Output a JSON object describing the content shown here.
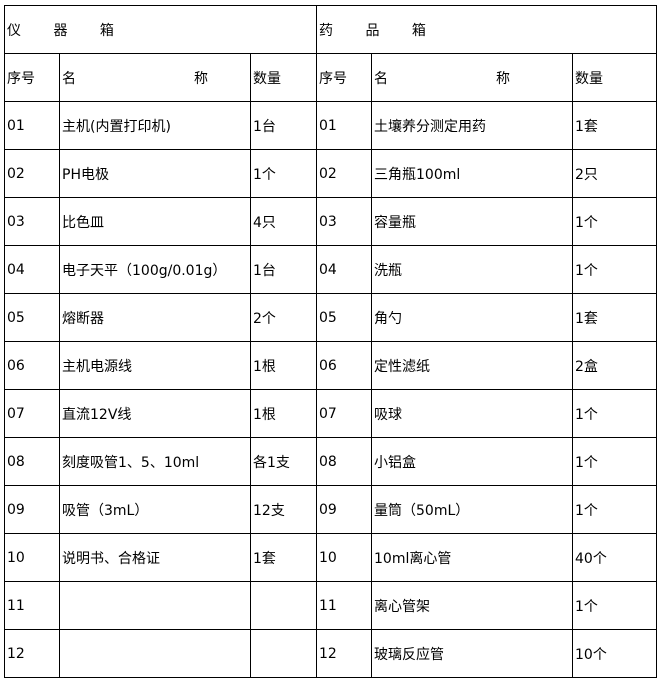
{
  "instrument_box": {
    "title": "仪 器 箱",
    "headers": {
      "no": "序号",
      "name_a": "名",
      "name_b": "称",
      "qty": "数量"
    },
    "rows": [
      {
        "no": "01",
        "name": "主机(内置打印机)",
        "qty": "1台"
      },
      {
        "no": "02",
        "name": "PH电极",
        "qty": "1个"
      },
      {
        "no": "03",
        "name": "比色皿",
        "qty": "4只"
      },
      {
        "no": "04",
        "name": "电子天平（100g/0.01g）",
        "qty": "1台"
      },
      {
        "no": "05",
        "name": "熔断器",
        "qty": "2个"
      },
      {
        "no": "06",
        "name": "主机电源线",
        "qty": "1根"
      },
      {
        "no": "07",
        "name": "直流12V线",
        "qty": "1根"
      },
      {
        "no": "08",
        "name": "刻度吸管1、5、10ml",
        "qty": "各1支"
      },
      {
        "no": "09",
        "name": "吸管（3mL）",
        "qty": "12支"
      },
      {
        "no": "10",
        "name": "说明书、合格证",
        "qty": "1套"
      },
      {
        "no": "11",
        "name": "",
        "qty": ""
      },
      {
        "no": "12",
        "name": "",
        "qty": ""
      }
    ]
  },
  "reagent_box": {
    "title": "药 品 箱",
    "headers": {
      "no": "序号",
      "name_a": "名",
      "name_b": "称",
      "qty": "数量"
    },
    "rows": [
      {
        "no": "01",
        "name": "土壤养分测定用药",
        "qty": "1套"
      },
      {
        "no": "02",
        "name": "三角瓶100ml",
        "qty": "2只"
      },
      {
        "no": "03",
        "name": "容量瓶",
        "qty": "1个"
      },
      {
        "no": "04",
        "name": "洗瓶",
        "qty": "1个"
      },
      {
        "no": "05",
        "name": "角勺",
        "qty": "1套"
      },
      {
        "no": "06",
        "name": "定性滤纸",
        "qty": "2盒"
      },
      {
        "no": "07",
        "name": "吸球",
        "qty": "1个"
      },
      {
        "no": "08",
        "name": "小铝盒",
        "qty": "1个"
      },
      {
        "no": "09",
        "name": "量筒（50mL）",
        "qty": "1个"
      },
      {
        "no": "10",
        "name": "10ml离心管",
        "qty": "40个"
      },
      {
        "no": "11",
        "name": "离心管架",
        "qty": "1个"
      },
      {
        "no": "12",
        "name": "玻璃反应管",
        "qty": "10个"
      }
    ]
  }
}
